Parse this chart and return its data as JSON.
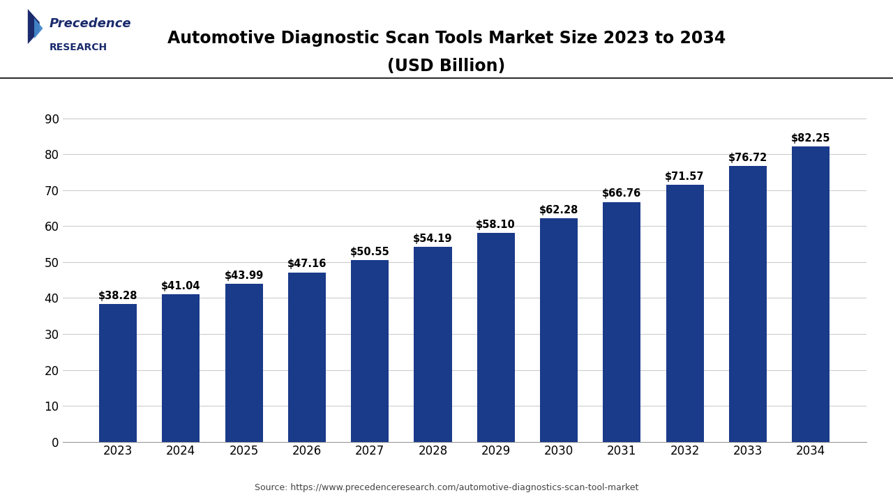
{
  "title_line1": "Automotive Diagnostic Scan Tools Market Size 2023 to 2034",
  "title_line2": "(USD Billion)",
  "years": [
    2023,
    2024,
    2025,
    2026,
    2027,
    2028,
    2029,
    2030,
    2031,
    2032,
    2033,
    2034
  ],
  "values": [
    38.28,
    41.04,
    43.99,
    47.16,
    50.55,
    54.19,
    58.1,
    62.28,
    66.76,
    71.57,
    76.72,
    82.25
  ],
  "bar_color": "#1a3a8a",
  "background_color": "#ffffff",
  "plot_bg_color": "#ffffff",
  "yticks": [
    0,
    10,
    20,
    30,
    40,
    50,
    60,
    70,
    80,
    90
  ],
  "ylim": [
    0,
    95
  ],
  "grid_color": "#cccccc",
  "label_fontsize": 10.5,
  "title_fontsize": 17,
  "tick_fontsize": 12,
  "source_text": "Source: https://www.precedenceresearch.com/automotive-diagnostics-scan-tool-market",
  "logo_text_precedence": "Precedence",
  "logo_text_research": "RESEARCH",
  "logo_color": "#1a2a6c",
  "logo_accent_color": "#4488cc"
}
